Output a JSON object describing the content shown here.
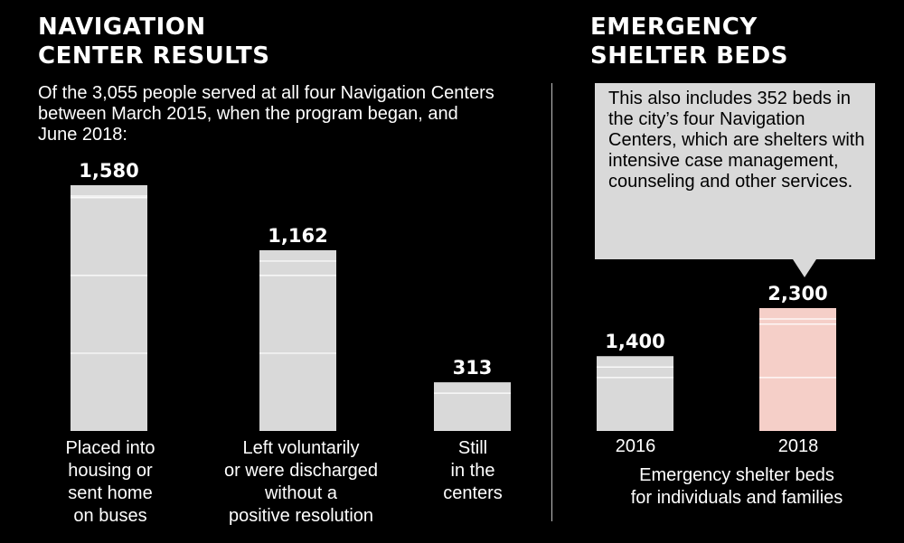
{
  "colors": {
    "background": "#000000",
    "bar_gray": "#d9d9d9",
    "bar_pink": "#f5cfc8",
    "text": "#ffffff",
    "callout_bg": "#d9d9d9",
    "gridline": "#ffffff"
  },
  "left_panel": {
    "title": "NAVIGATION\nCENTER RESULTS",
    "subtitle": "Of the 3,055 people served at all four Navigation Centers between March 2015, when the program began, and June 2018:"
  },
  "right_panel": {
    "title": "EMERGENCY\nSHELTER BEDS",
    "callout": "This also includes 352 beds in the city’s four Navigation Centers, which are shelters with intensive case management, counseling and other services.",
    "xlabel": "Emergency shelter beds\nfor individuals and families"
  },
  "chart_data": [
    {
      "type": "bar",
      "title": "NAVIGATION CENTER RESULTS",
      "categories": [
        "Placed into\nhousing or\nsent home\non buses",
        "Left voluntarily\nor were discharged\nwithout a\npositive resolution",
        "Still\nin the\ncenters"
      ],
      "values": [
        1580,
        1162,
        313
      ],
      "value_labels": [
        "1,580",
        "1,162",
        "313"
      ],
      "grid": true,
      "gridline_interval": 500,
      "colors": [
        "#d9d9d9",
        "#d9d9d9",
        "#d9d9d9"
      ]
    },
    {
      "type": "bar",
      "title": "EMERGENCY SHELTER BEDS",
      "categories": [
        "2016",
        "2018"
      ],
      "values": [
        1400,
        2300
      ],
      "value_labels": [
        "1,400",
        "2,300"
      ],
      "xlabel": "Emergency shelter beds\nfor individuals and families",
      "grid": true,
      "gridline_interval": 1000,
      "colors": [
        "#d9d9d9",
        "#f5cfc8"
      ]
    }
  ]
}
